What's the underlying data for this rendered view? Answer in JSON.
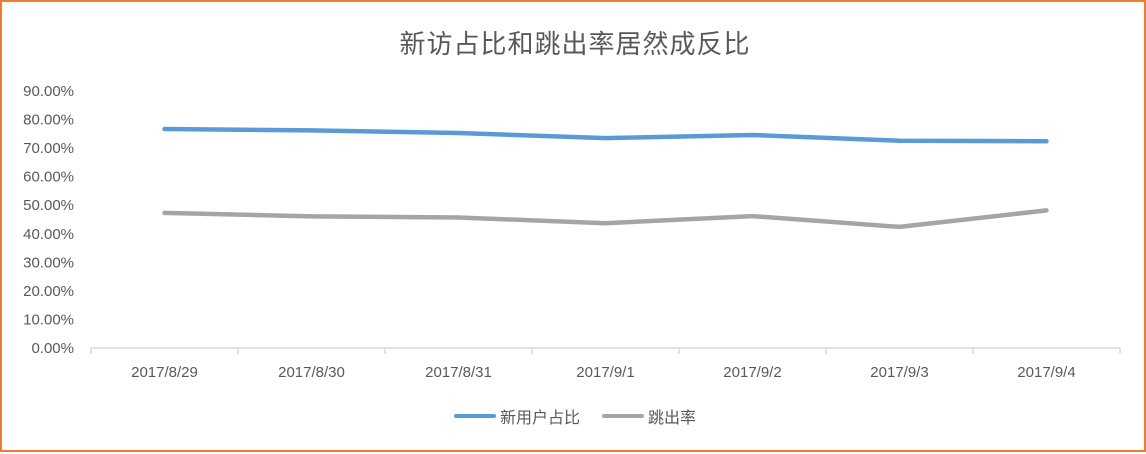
{
  "chart_data": {
    "type": "line",
    "title": "新访占比和跳出率居然成反比",
    "xlabel": "",
    "ylabel": "",
    "categories": [
      "2017/8/29",
      "2017/8/30",
      "2017/8/31",
      "2017/9/1",
      "2017/9/2",
      "2017/9/3",
      "2017/9/4"
    ],
    "series": [
      {
        "name": "新用户占比",
        "color": "#5b9bd5",
        "values": [
          76.7,
          76.2,
          75.3,
          73.5,
          74.6,
          72.6,
          72.4
        ]
      },
      {
        "name": "跳出率",
        "color": "#a5a5a5",
        "values": [
          47.3,
          46.1,
          45.7,
          43.7,
          46.2,
          42.4,
          48.2
        ]
      }
    ],
    "ylim": [
      0,
      90
    ],
    "yticks": [
      "0.00%",
      "10.00%",
      "20.00%",
      "30.00%",
      "40.00%",
      "50.00%",
      "60.00%",
      "70.00%",
      "80.00%",
      "90.00%"
    ],
    "grid": false,
    "legend_position": "bottom"
  },
  "colors": {
    "border": "#ed7d31",
    "axis": "#d9d9d9",
    "text": "#595959"
  }
}
